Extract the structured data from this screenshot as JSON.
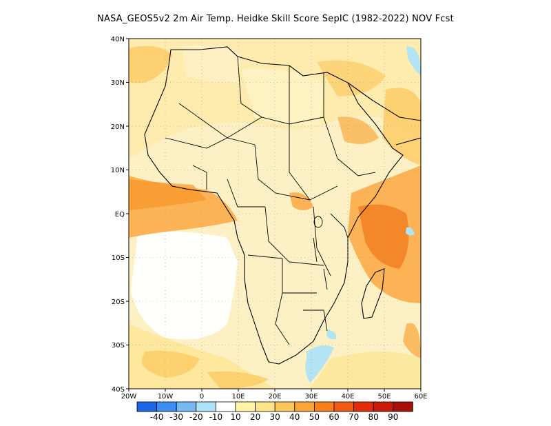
{
  "title": "NASA_GEOS5v2  2m Air Temp. Heidke Skill Score SepIC (1982-2022) NOV Fcst",
  "lat_labels": [
    "40N",
    "30N",
    "20N",
    "10N",
    "EQ",
    "10S",
    "20S",
    "30S",
    "40S"
  ],
  "lon_labels": [
    "20W",
    "10W",
    "0",
    "10E",
    "20E",
    "30E",
    "40E",
    "50E",
    "60E"
  ],
  "colorbar": {
    "labels": [
      "-40",
      "-30",
      "-20",
      "-10",
      "10",
      "20",
      "30",
      "40",
      "50",
      "60",
      "70",
      "80",
      "90"
    ],
    "colors": [
      "#1f66e5",
      "#3c8ef0",
      "#78b8f2",
      "#aee3f7",
      "#ffffff",
      "#fff3a8",
      "#fde38a",
      "#fcc85e",
      "#f9a53a",
      "#f77f1e",
      "#f05a15",
      "#e02e0d",
      "#c71a0a",
      "#a80f08"
    ]
  },
  "map_colors": {
    "ocean_base": "#fdf5d8",
    "land_outline": "#000000",
    "grid": "#888888"
  }
}
